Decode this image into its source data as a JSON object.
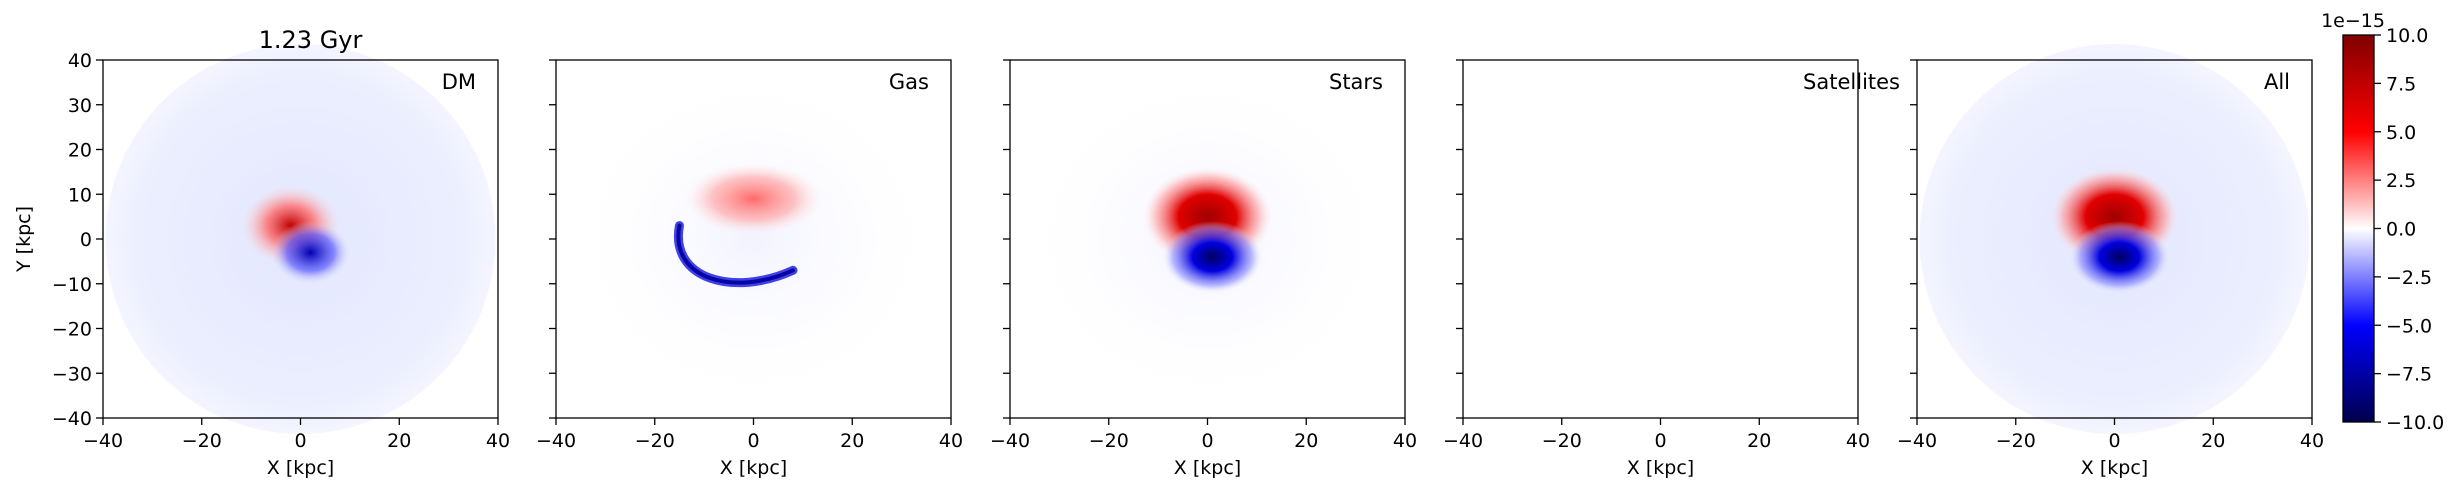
{
  "chart_data": {
    "type": "heatmap",
    "title": "1.23 Gyr",
    "xlabel": "X [kpc]",
    "ylabel": "Y [kpc]",
    "xlim": [
      -40,
      40
    ],
    "ylim": [
      -40,
      40
    ],
    "xticks": [
      -40,
      -20,
      0,
      20,
      40
    ],
    "yticks": [
      40,
      30,
      20,
      10,
      0,
      -10,
      -20,
      -30,
      -40
    ],
    "panels": [
      {
        "label": "DM"
      },
      {
        "label": "Gas"
      },
      {
        "label": "Stars"
      },
      {
        "label": "Satellites"
      },
      {
        "label": "All"
      }
    ],
    "colorbar": {
      "colormap": "seismic",
      "range": [
        -1e-14,
        1e-14
      ],
      "exponent_label": "1e−15",
      "ticks": [
        "10.0",
        "7.5",
        "5.0",
        "2.5",
        "0.0",
        "−2.5",
        "−5.0",
        "−7.5",
        "−10.0"
      ],
      "tick_values": [
        10.0,
        7.5,
        5.0,
        2.5,
        0.0,
        -2.5,
        -5.0,
        -7.5,
        -10.0
      ]
    },
    "grid": false
  }
}
